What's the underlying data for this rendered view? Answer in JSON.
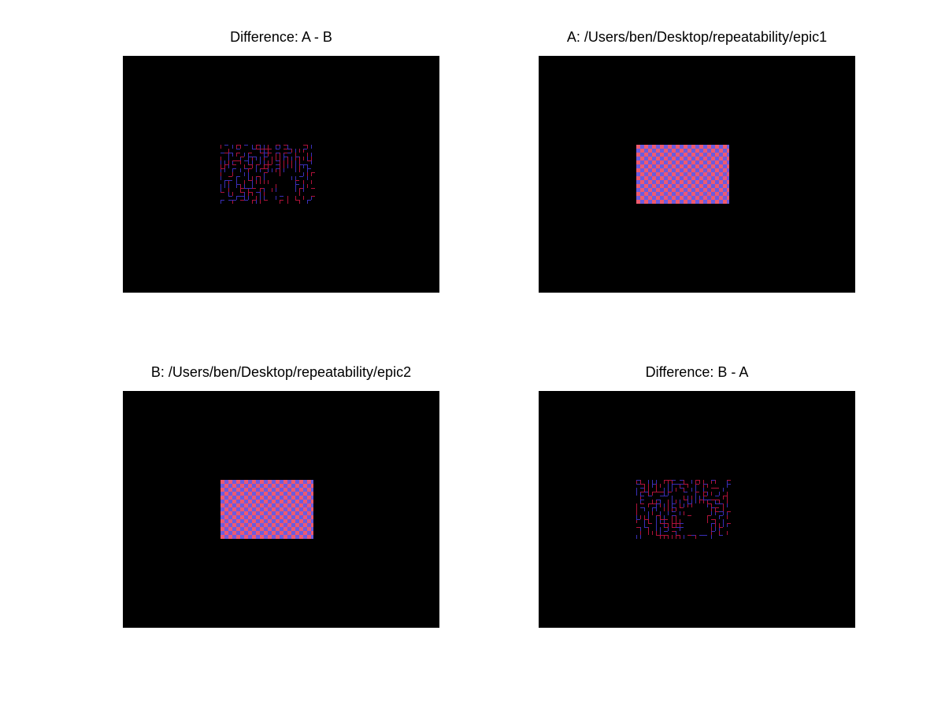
{
  "colors": {
    "background": "#ffffff",
    "image_background": "#000000",
    "checker_red": "#ef5a6f",
    "checker_blue": "#6a5ce0",
    "diff_red": "#b0123a",
    "diff_blue": "#3a2fb8"
  },
  "panels": [
    {
      "title": "Difference: A - B",
      "kind": "difference",
      "seed": 1
    },
    {
      "title": "A: /Users/ben/Desktop/repeatability/epic1",
      "kind": "checker"
    },
    {
      "title": "B: /Users/ben/Desktop/repeatability/epic2",
      "kind": "checker"
    },
    {
      "title": "Difference: B - A",
      "kind": "difference",
      "seed": 2
    }
  ]
}
